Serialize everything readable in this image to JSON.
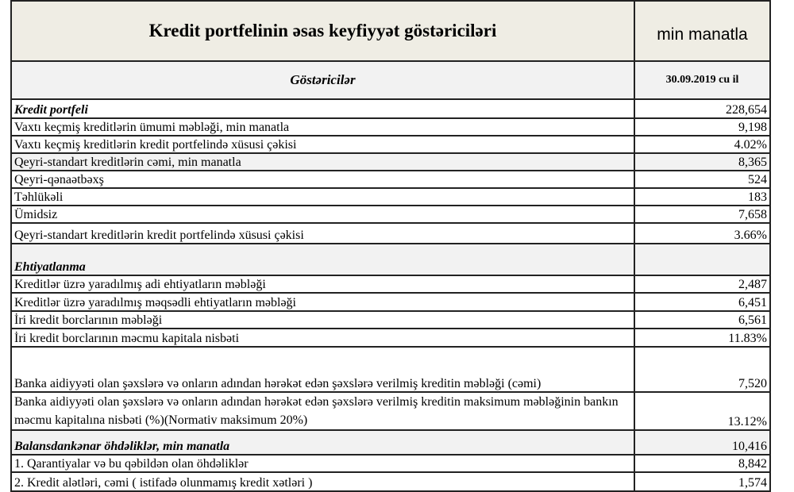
{
  "title": "Kredit portfelinin əsas keyfiyyət göstəriciləri",
  "unit": "min manatla",
  "col_header": "Göstəricilər",
  "date_header": "30.09.2019 cu il",
  "rows": [
    {
      "label": "Kredit portfeli",
      "value": "228,654",
      "section": true,
      "h": 22
    },
    {
      "label": "Vaxtı keçmiş kreditlərin ümumi məbləği, min manatla",
      "value": "9,198",
      "h": 20
    },
    {
      "label": "Vaxtı keçmiş kreditlərin kredit portfelində xüsusi çəkisi",
      "value": "4.02%",
      "h": 20
    },
    {
      "label": "Qeyri-standart kreditlərin cəmi, min manatla",
      "value": "8,365",
      "h": 20,
      "gray": true
    },
    {
      "label": "Qeyri-qənaətbəxş",
      "value": "524",
      "h": 20
    },
    {
      "label": "Təhlükəli",
      "value": "183",
      "h": 20
    },
    {
      "label": "Ümidsiz",
      "value": "7,658",
      "h": 20
    },
    {
      "label": "Qeyri-standart kreditlərin kredit portfelində xüsusi çəkisi",
      "value": "3.66%",
      "h": 24
    },
    {
      "label": "Ehtiyatlanma",
      "value": "",
      "section": true,
      "h": 38,
      "gray": true
    },
    {
      "label": "Kreditlər üzrə yaradılmış adi ehtiyatların məbləği",
      "value": "2,487",
      "h": 20
    },
    {
      "label": "Kreditlər üzrə yaradılmış məqsədli ehtiyatların məbləği",
      "value": "6,451",
      "h": 21
    },
    {
      "label": "İri kredit borclarının məbləği",
      "value": "6,561",
      "h": 20
    },
    {
      "label": "İri kredit borclarının məcmu kapitala nisbəti",
      "value": "11.83%",
      "h": 21
    },
    {
      "label": "Banka aidiyyəti olan şəxslərə və onların adından hərəkət edən şəxslərə verilmiş kreditin  məbləği (cəmi)",
      "value": "7,520",
      "h": 55
    },
    {
      "label": "Banka aidiyyəti olan şəxslərə və onların adından hərəkət edən şəxslərə verilmiş kreditin maksimum məbləğinin bankın məcmu kapitalına nisbəti (%)(Normativ maksimum 20%)",
      "value": "13.12%",
      "h": 46,
      "lh": true
    },
    {
      "label": "Balansdankənar öhdəliklər, min manatla",
      "value": "10,416",
      "section": true,
      "h": 29,
      "gray": true
    },
    {
      "label": "1. Qarantiyalar və bu qəbildən olan öhdəliklər",
      "value": "8,842",
      "h": 20
    },
    {
      "label": "2. Kredit alətləri, cəmi ( istifadə olunmamış kredit xətləri )",
      "value": "1,574",
      "h": 22
    }
  ]
}
